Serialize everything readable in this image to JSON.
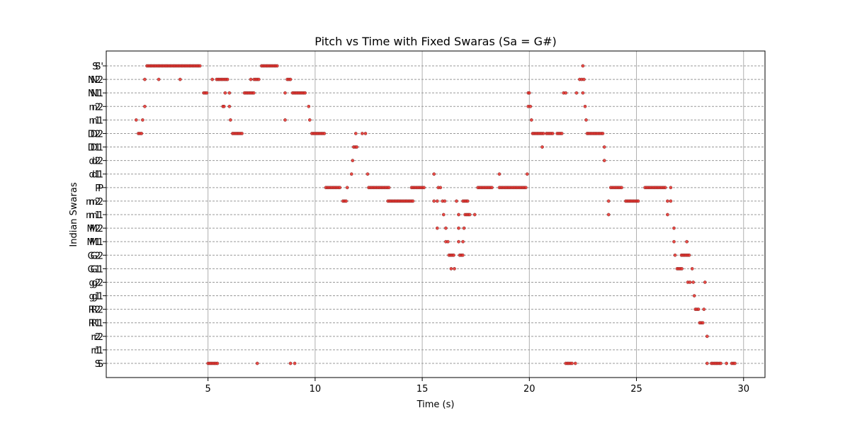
{
  "chart_data": {
    "type": "scatter",
    "title": "Pitch vs Time with Fixed Swaras (Sa = G#)",
    "xlabel": "Time (s)",
    "ylabel": "Indian Swaras",
    "xlim": [
      0.25,
      31.0
    ],
    "x_ticks": [
      5,
      10,
      15,
      20,
      25,
      30
    ],
    "categories": [
      "S",
      "r1",
      "r2",
      "R1",
      "R2",
      "g1",
      "g2",
      "G1",
      "G2",
      "M1",
      "M2",
      "m1",
      "m2",
      "P",
      "d1",
      "d2",
      "D1",
      "D2",
      "n1",
      "n2",
      "N1",
      "N2",
      "S'"
    ],
    "y_tick_labels": [
      {
        "swara": "S",
        "overlay": "S"
      },
      {
        "swara": "r1",
        "overlay": "r1"
      },
      {
        "swara": "r2",
        "overlay": "r2"
      },
      {
        "swara": "R1",
        "overlay": "R1"
      },
      {
        "swara": "R2",
        "overlay": "R2"
      },
      {
        "swara": "g1",
        "overlay": "g1"
      },
      {
        "swara": "g2",
        "overlay": "g2"
      },
      {
        "swara": "G1",
        "overlay": "G1"
      },
      {
        "swara": "G2",
        "overlay": "G2"
      },
      {
        "swara": "M1",
        "overlay": "M1"
      },
      {
        "swara": "M2",
        "overlay": "M2"
      },
      {
        "swara": "m1",
        "overlay": "m1"
      },
      {
        "swara": "m2",
        "overlay": "m2"
      },
      {
        "swara": "P",
        "overlay": "P"
      },
      {
        "swara": "d1",
        "overlay": "d1"
      },
      {
        "swara": "d2",
        "overlay": "d2"
      },
      {
        "swara": "D1",
        "overlay": "D1"
      },
      {
        "swara": "D2",
        "overlay": "D2"
      },
      {
        "swara": "n1",
        "overlay": "n1"
      },
      {
        "swara": "n2",
        "overlay": "n2"
      },
      {
        "swara": "N1",
        "overlay": "N1"
      },
      {
        "swara": "N2",
        "overlay": "N2"
      },
      {
        "swara": "S'",
        "overlay": "S'"
      }
    ],
    "grid": {
      "x": true,
      "y": true,
      "y_style": "dashed"
    },
    "marker_color": "#e8302a",
    "marker_edge_color": "#7a1f1f",
    "grid_color": "#999999",
    "series": [
      {
        "segments": [
          {
            "swara": "S'",
            "ranges": [
              [
                2.15,
                4.65
              ],
              [
                7.5,
                8.25
              ]
            ],
            "points": [
              22.5
            ]
          },
          {
            "swara": "N2",
            "ranges": [
              [
                5.4,
                5.95
              ],
              [
                7.15,
                7.4
              ],
              [
                8.7,
                8.85
              ]
            ],
            "points": [
              2.05,
              2.7,
              3.7,
              5.2,
              7.0,
              22.35,
              22.45,
              22.55
            ]
          },
          {
            "swara": "N1",
            "ranges": [
              [
                4.8,
                4.95
              ],
              [
                6.7,
                7.2
              ],
              [
                8.95,
                9.6
              ]
            ],
            "points": [
              5.8,
              6.0,
              8.6,
              19.95,
              20.0,
              21.6,
              21.7,
              22.2,
              22.5
            ]
          },
          {
            "swara": "n2",
            "ranges": [],
            "points": [
              2.05,
              5.7,
              5.75,
              6.0,
              9.7,
              19.95,
              20.05,
              22.6
            ]
          },
          {
            "swara": "n1",
            "ranges": [],
            "points": [
              1.65,
              1.95,
              6.05,
              8.6,
              9.75,
              20.1,
              22.65
            ]
          },
          {
            "swara": "D2",
            "ranges": [
              [
                1.75,
                1.95
              ],
              [
                6.15,
                6.65
              ],
              [
                9.85,
                10.5
              ],
              [
                20.15,
                20.7
              ],
              [
                20.8,
                21.1
              ],
              [
                21.3,
                21.55
              ],
              [
                22.7,
                23.45
              ]
            ],
            "points": [
              11.9,
              12.2,
              12.35
            ]
          },
          {
            "swara": "D1",
            "ranges": [
              [
                11.8,
                12.0
              ]
            ],
            "points": [
              20.6,
              23.5
            ]
          },
          {
            "swara": "d2",
            "ranges": [],
            "points": [
              11.75,
              23.5
            ]
          },
          {
            "swara": "d1",
            "ranges": [],
            "points": [
              11.7,
              12.45,
              15.55,
              18.6,
              19.9
            ]
          },
          {
            "swara": "P",
            "ranges": [
              [
                10.5,
                11.2
              ],
              [
                12.5,
                13.45
              ],
              [
                14.5,
                15.1
              ],
              [
                17.6,
                18.3
              ],
              [
                18.6,
                19.9
              ],
              [
                23.8,
                24.35
              ],
              [
                25.4,
                26.4
              ]
            ],
            "points": [
              11.5,
              15.75,
              15.85,
              26.6
            ]
          },
          {
            "swara": "m2",
            "ranges": [
              [
                11.3,
                11.5
              ],
              [
                13.4,
                14.6
              ],
              [
                16.9,
                17.15
              ],
              [
                24.5,
                25.1
              ]
            ],
            "points": [
              15.55,
              15.7,
              15.95,
              16.05,
              16.6,
              23.7,
              26.45,
              26.6
            ]
          },
          {
            "swara": "m1",
            "ranges": [
              [
                17.0,
                17.25
              ]
            ],
            "points": [
              16.0,
              16.7,
              17.45,
              23.7,
              26.45
            ]
          },
          {
            "swara": "M2",
            "ranges": [],
            "points": [
              15.7,
              16.1,
              16.7,
              16.95,
              26.75
            ]
          },
          {
            "swara": "M1",
            "ranges": [],
            "points": [
              16.1,
              16.2,
              16.7,
              16.9,
              26.75,
              27.35
            ]
          },
          {
            "swara": "G2",
            "ranges": [
              [
                16.25,
                16.5
              ],
              [
                16.75,
                16.95
              ],
              [
                27.1,
                27.5
              ]
            ],
            "points": [
              26.8
            ]
          },
          {
            "swara": "G1",
            "ranges": [
              [
                26.9,
                27.15
              ]
            ],
            "points": [
              16.35,
              16.5,
              27.6
            ]
          },
          {
            "swara": "g2",
            "ranges": [],
            "points": [
              27.4,
              27.5,
              27.65,
              28.2
            ]
          },
          {
            "swara": "g1",
            "ranges": [],
            "points": [
              27.7
            ]
          },
          {
            "swara": "R2",
            "ranges": [
              [
                27.75,
                27.95
              ]
            ],
            "points": [
              28.15
            ]
          },
          {
            "swara": "R1",
            "ranges": [
              [
                27.95,
                28.15
              ]
            ],
            "points": []
          },
          {
            "swara": "r2",
            "ranges": [],
            "points": [
              28.3
            ]
          },
          {
            "swara": "r1",
            "ranges": [],
            "points": []
          },
          {
            "swara": "S",
            "ranges": [
              [
                5.0,
                5.5
              ],
              [
                21.7,
                22.0
              ],
              [
                28.5,
                28.95
              ],
              [
                29.45,
                29.65
              ]
            ],
            "points": [
              7.3,
              8.85,
              9.05,
              22.15,
              28.3,
              29.2
            ]
          }
        ]
      }
    ]
  }
}
